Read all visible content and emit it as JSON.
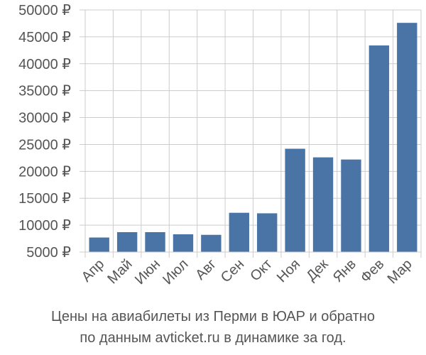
{
  "chart_data": {
    "type": "bar",
    "categories": [
      "Апр",
      "Май",
      "Июн",
      "Июл",
      "Авг",
      "Сен",
      "Окт",
      "Ноя",
      "Дек",
      "Янв",
      "Фев",
      "Мар"
    ],
    "values": [
      7700,
      8700,
      8700,
      8300,
      8200,
      12300,
      12200,
      24200,
      22600,
      22200,
      43400,
      47600
    ],
    "ylim": [
      5000,
      50000
    ],
    "yticks": [
      5000,
      10000,
      15000,
      20000,
      25000,
      30000,
      35000,
      40000,
      45000,
      50000
    ],
    "ytick_labels": [
      "5000 ₽",
      "10000 ₽",
      "15000 ₽",
      "20000 ₽",
      "25000 ₽",
      "30000 ₽",
      "35000 ₽",
      "40000 ₽",
      "45000 ₽",
      "50000 ₽"
    ],
    "title": "",
    "xlabel": "",
    "ylabel": "",
    "grid": true,
    "legend": "none",
    "bar_color": "#4a74a5"
  },
  "caption": {
    "line1": "Цены на авиабилеты из Перми в ЮАР и обратно",
    "line2": "по данным avticket.ru в динамике за год."
  }
}
